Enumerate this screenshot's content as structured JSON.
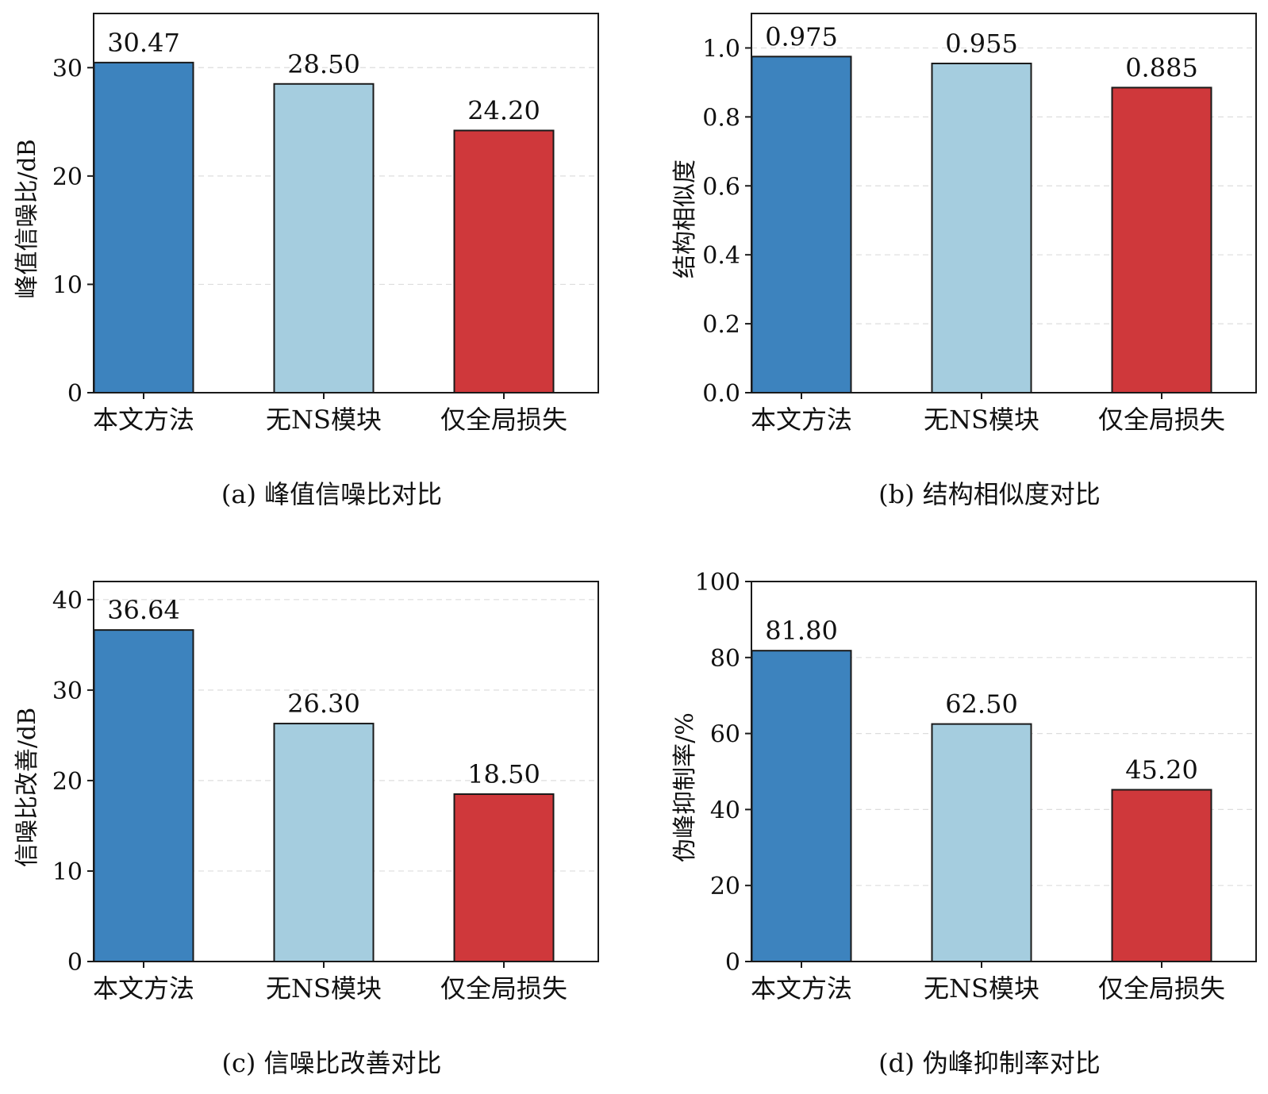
{
  "colors": {
    "bar1": "#3d83be",
    "bar2": "#a5cddf",
    "bar3": "#cf383b",
    "edge": "#1a1a1a",
    "grid": "#dddddd"
  },
  "chart_data": [
    {
      "type": "bar",
      "categories": [
        "本文方法",
        "无NS模块",
        "仅全局损失"
      ],
      "values": [
        30.47,
        28.5,
        24.2
      ],
      "value_labels": [
        "30.47",
        "28.50",
        "24.20"
      ],
      "ylabel": "峰值信噪比/dB",
      "ylim": [
        0,
        35
      ],
      "yticks": [
        0,
        10,
        20,
        30
      ],
      "ytick_labels": [
        "0",
        "10",
        "20",
        "30"
      ],
      "caption": "(a)  峰值信噪比对比",
      "grid": true
    },
    {
      "type": "bar",
      "categories": [
        "本文方法",
        "无NS模块",
        "仅全局损失"
      ],
      "values": [
        0.975,
        0.955,
        0.885
      ],
      "value_labels": [
        "0.975",
        "0.955",
        "0.885"
      ],
      "ylabel": "结构相似度",
      "ylim": [
        0,
        1.1
      ],
      "yticks": [
        0,
        0.2,
        0.4,
        0.6,
        0.8,
        1.0
      ],
      "ytick_labels": [
        "0.0",
        "0.2",
        "0.4",
        "0.6",
        "0.8",
        "1.0"
      ],
      "caption": "(b)  结构相似度对比",
      "grid": true
    },
    {
      "type": "bar",
      "categories": [
        "本文方法",
        "无NS模块",
        "仅全局损失"
      ],
      "values": [
        36.64,
        26.3,
        18.5
      ],
      "value_labels": [
        "36.64",
        "26.30",
        "18.50"
      ],
      "ylabel": "信噪比改善/dB",
      "ylim": [
        0,
        42
      ],
      "yticks": [
        0,
        10,
        20,
        30,
        40
      ],
      "ytick_labels": [
        "0",
        "10",
        "20",
        "30",
        "40"
      ],
      "caption": "(c)  信噪比改善对比",
      "grid": true
    },
    {
      "type": "bar",
      "categories": [
        "本文方法",
        "无NS模块",
        "仅全局损失"
      ],
      "values": [
        81.8,
        62.5,
        45.2
      ],
      "value_labels": [
        "81.80",
        "62.50",
        "45.20"
      ],
      "ylabel": "伪峰抑制率/%",
      "ylim": [
        0,
        100
      ],
      "yticks": [
        0,
        20,
        40,
        60,
        80,
        100
      ],
      "ytick_labels": [
        "0",
        "20",
        "40",
        "60",
        "80",
        "100"
      ],
      "caption": "(d)  伪峰抑制率对比",
      "grid": true
    }
  ]
}
